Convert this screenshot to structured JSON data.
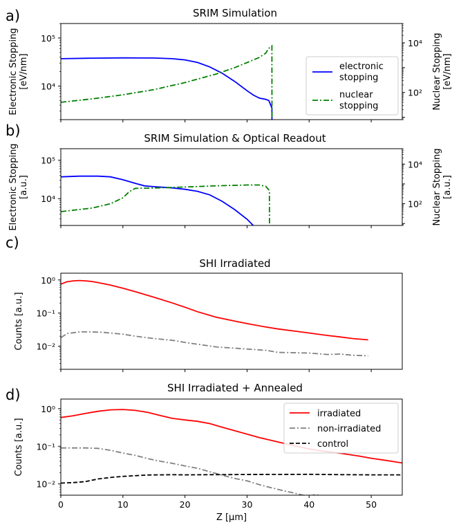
{
  "chart_data": [
    {
      "panel": "a)",
      "type": "line",
      "title": "SRIM Simulation",
      "ylabel_lines": [
        "Electronic Stopping",
        "[eV/nm]"
      ],
      "y2label_lines": [
        "Nuclear Stopping",
        "[eV/nm]"
      ],
      "xlim": [
        0,
        55
      ],
      "ylim": [
        2000,
        200000
      ],
      "y2lim": [
        8,
        60000
      ],
      "yscale": "log",
      "y2scale": "log",
      "yticks": [
        {
          "v": 10000,
          "label": "10⁴"
        },
        {
          "v": 100000,
          "label": "10⁵"
        }
      ],
      "y2ticks": [
        {
          "v": 100,
          "label": "10²"
        },
        {
          "v": 10000,
          "label": "10⁴"
        }
      ],
      "series": [
        {
          "name": "electronic stopping",
          "axis": "left",
          "color": "#0000ff",
          "dash": "solid",
          "x": [
            0,
            5,
            10,
            15,
            18,
            20,
            22,
            24,
            26,
            28,
            30,
            31,
            32,
            33,
            33.5,
            34,
            34.01
          ],
          "y": [
            37000,
            38000,
            38500,
            38300,
            37000,
            35000,
            31000,
            25000,
            18500,
            12500,
            8000,
            6500,
            5600,
            5300,
            5000,
            3500,
            2000
          ]
        },
        {
          "name": "nuclear stopping",
          "axis": "right",
          "color": "#008000",
          "dash": "dashdot",
          "x": [
            0,
            5,
            10,
            15,
            20,
            25,
            28,
            30,
            32,
            33,
            33.5,
            34,
            34.01
          ],
          "y": [
            40,
            55,
            80,
            130,
            250,
            550,
            1000,
            1600,
            2600,
            3800,
            6000,
            7500,
            8
          ]
        }
      ],
      "legend": {
        "position": "right",
        "entries": [
          {
            "lines": [
              "electronic",
              "stopping"
            ],
            "color": "#0000ff",
            "dash": "solid"
          },
          {
            "lines": [
              "nuclear",
              "stopping"
            ],
            "color": "#008000",
            "dash": "dashdot"
          }
        ]
      }
    },
    {
      "panel": "b)",
      "type": "line",
      "title": "SRIM Simulation & Optical Readout",
      "ylabel_lines": [
        "Electronic Stopping",
        "[a.u.]"
      ],
      "y2label_lines": [
        "Nuclear Stopping",
        "[a.u.]"
      ],
      "xlim": [
        0,
        55
      ],
      "ylim": [
        2000,
        200000
      ],
      "y2lim": [
        8,
        60000
      ],
      "yscale": "log",
      "y2scale": "log",
      "yticks": [
        {
          "v": 10000,
          "label": "10⁴"
        },
        {
          "v": 100000,
          "label": "10⁵"
        }
      ],
      "y2ticks": [
        {
          "v": 100,
          "label": "10²"
        },
        {
          "v": 10000,
          "label": "10⁴"
        }
      ],
      "series": [
        {
          "name": "electronic stopping",
          "axis": "left",
          "color": "#0000ff",
          "dash": "solid",
          "x": [
            0,
            3,
            6,
            8,
            10,
            12,
            13.5,
            15,
            18,
            20,
            22,
            24,
            26,
            28,
            30,
            31
          ],
          "y": [
            37000,
            38500,
            38500,
            37000,
            31000,
            25000,
            21500,
            20500,
            19000,
            17500,
            15500,
            12500,
            8500,
            5200,
            2900,
            2000
          ]
        },
        {
          "name": "nuclear stopping",
          "axis": "right",
          "color": "#008000",
          "dash": "dashdot",
          "x": [
            0,
            5,
            8,
            10,
            11,
            12,
            15,
            20,
            25,
            30,
            32,
            33,
            33.5,
            33.6,
            33.61
          ],
          "y": [
            40,
            60,
            100,
            200,
            400,
            600,
            620,
            700,
            800,
            880,
            880,
            760,
            500,
            400,
            8
          ]
        }
      ]
    },
    {
      "panel": "c)",
      "type": "line",
      "title": "SHI Irradiated",
      "ylabel_lines": [
        "Counts [a.u.]"
      ],
      "xlim": [
        0,
        55
      ],
      "ylim": [
        0.002,
        1.6
      ],
      "yscale": "log",
      "yticks": [
        {
          "v": 0.01,
          "label": "10⁻²"
        },
        {
          "v": 0.1,
          "label": "10⁻¹"
        },
        {
          "v": 1,
          "label": "10⁰"
        }
      ],
      "series": [
        {
          "name": "irradiated",
          "axis": "left",
          "color": "#ff0000",
          "dash": "solid",
          "x": [
            0,
            1,
            2,
            3,
            4,
            5,
            6,
            8,
            10,
            12,
            15,
            18,
            20,
            22,
            25,
            28,
            30,
            33,
            35,
            38,
            40,
            43,
            45,
            47,
            49.5
          ],
          "y": [
            0.75,
            0.88,
            0.94,
            0.96,
            0.94,
            0.9,
            0.83,
            0.7,
            0.56,
            0.44,
            0.3,
            0.2,
            0.15,
            0.11,
            0.075,
            0.057,
            0.048,
            0.038,
            0.033,
            0.028,
            0.025,
            0.021,
            0.019,
            0.017,
            0.0155
          ]
        },
        {
          "name": "non-irradiated",
          "axis": "left",
          "color": "#808080",
          "dash": "dashdot",
          "x": [
            0,
            1,
            3,
            5,
            7,
            10,
            12,
            15,
            18,
            20,
            25,
            30,
            33,
            35,
            40,
            43,
            45,
            47,
            49.5
          ],
          "y": [
            0.018,
            0.024,
            0.027,
            0.027,
            0.026,
            0.023,
            0.02,
            0.017,
            0.015,
            0.013,
            0.0095,
            0.0082,
            0.0075,
            0.0065,
            0.0062,
            0.0056,
            0.0058,
            0.0053,
            0.0051
          ]
        }
      ]
    },
    {
      "panel": "d)",
      "type": "line",
      "title": "SHI Irradiated + Annealed",
      "ylabel_lines": [
        "Counts [a.u.]"
      ],
      "xlabel": "Z [μm]",
      "xlim": [
        0,
        55
      ],
      "ylim": [
        0.005,
        1.8
      ],
      "yscale": "log",
      "xticks": [
        0,
        10,
        20,
        30,
        40,
        50
      ],
      "yticks": [
        {
          "v": 0.01,
          "label": "10⁻²"
        },
        {
          "v": 0.1,
          "label": "10⁻¹"
        },
        {
          "v": 1,
          "label": "10⁰"
        }
      ],
      "series": [
        {
          "name": "irradiated",
          "axis": "left",
          "color": "#ff0000",
          "dash": "solid",
          "x": [
            0,
            2,
            4,
            6,
            8,
            10,
            12,
            14,
            16,
            18,
            20,
            22,
            24,
            26,
            28,
            30,
            32,
            35,
            38,
            40,
            42,
            45,
            48,
            50,
            52,
            55
          ],
          "y": [
            0.58,
            0.65,
            0.75,
            0.85,
            0.93,
            0.95,
            0.9,
            0.8,
            0.66,
            0.55,
            0.5,
            0.46,
            0.4,
            0.32,
            0.26,
            0.21,
            0.17,
            0.13,
            0.1,
            0.085,
            0.075,
            0.065,
            0.055,
            0.048,
            0.043,
            0.036
          ]
        },
        {
          "name": "non-irradiated",
          "axis": "left",
          "color": "#808080",
          "dash": "dashdot",
          "x": [
            0,
            2,
            4,
            6,
            8,
            10,
            12,
            14,
            16,
            18,
            20,
            22,
            24,
            26,
            28,
            30,
            32,
            34,
            36,
            38,
            39,
            40,
            41,
            42
          ],
          "y": [
            0.09,
            0.09,
            0.09,
            0.088,
            0.078,
            0.066,
            0.057,
            0.047,
            0.04,
            0.035,
            0.03,
            0.026,
            0.021,
            0.017,
            0.014,
            0.012,
            0.0095,
            0.0078,
            0.0065,
            0.0055,
            0.005,
            0.0048,
            0.0051,
            0.0049
          ]
        },
        {
          "name": "control",
          "axis": "left",
          "color": "#000000",
          "dash": "dashed",
          "x": [
            0,
            2,
            4,
            6,
            8,
            10,
            12,
            14,
            16,
            18,
            20,
            25,
            30,
            35,
            40,
            45,
            50,
            55
          ],
          "y": [
            0.0105,
            0.0108,
            0.0115,
            0.0135,
            0.0148,
            0.0158,
            0.0165,
            0.0172,
            0.0174,
            0.0175,
            0.0174,
            0.0176,
            0.0177,
            0.0178,
            0.018,
            0.0176,
            0.0174,
            0.0174
          ]
        }
      ],
      "legend": {
        "position": "top-right",
        "entries": [
          {
            "lines": [
              "irradiated"
            ],
            "color": "#ff0000",
            "dash": "solid"
          },
          {
            "lines": [
              "non-irradiated"
            ],
            "color": "#808080",
            "dash": "dashdot"
          },
          {
            "lines": [
              "control"
            ],
            "color": "#000000",
            "dash": "dashed"
          }
        ]
      }
    }
  ]
}
